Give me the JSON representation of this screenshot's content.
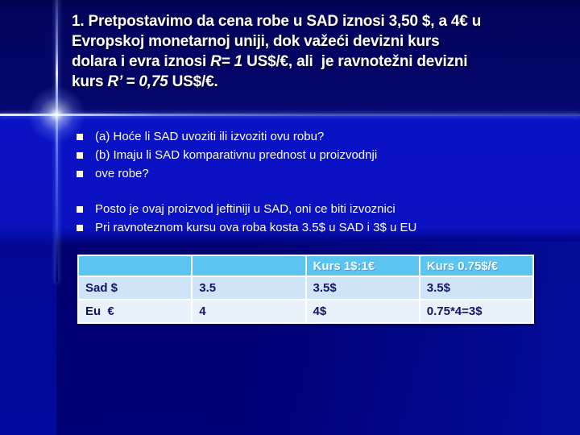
{
  "slide": {
    "title": {
      "line1": "1. Pretpostavimo da cena robe u SAD iznosi 3,50 $, a 4€ u",
      "line2": "Evropskoj monetarnoj uniji, dok važeći devizni kurs",
      "line3_pre": "dolara i evra iznosi ",
      "line3_italic": "R= 1",
      "line3_post": " US$/€, ali  je ravnotežni devizni",
      "line4_pre": "kurs ",
      "line4_italic": "R’ = 0,75",
      "line4_post": " US$/€."
    },
    "bullets_group1": [
      "(a) Hoće li SAD uvoziti ili izvoziti ovu robu?",
      "(b) Imaju li SAD komparativnu prednost u proizvodnji",
      "ove robe?"
    ],
    "bullets_group2": [
      "Posto je ovaj proizvod jeftiniji u SAD, oni ce biti izvoznici",
      "Pri ravnoteznom kursu ova roba kosta 3.5$ u SAD i 3$ u EU"
    ],
    "table": {
      "headers": [
        "",
        "",
        "Kurs 1$:1€",
        "Kurs 0.75$/€"
      ],
      "rows": [
        [
          "Sad $",
          "3.5",
          "3.5$",
          "3.5$"
        ],
        [
          "Eu  €",
          "4",
          "4$",
          "0.75*4=3$"
        ]
      ]
    },
    "colors": {
      "background_dark": "#04046a",
      "background_bright_band": "#0a12c6",
      "table_header_bg": "#5cc4f0",
      "table_row1_bg": "#cfe5f7",
      "table_row2_bg": "#e9f2fb",
      "table_cell_text": "#141468",
      "bullet_square": "#fffbd6",
      "title_text": "#ffffff"
    }
  }
}
